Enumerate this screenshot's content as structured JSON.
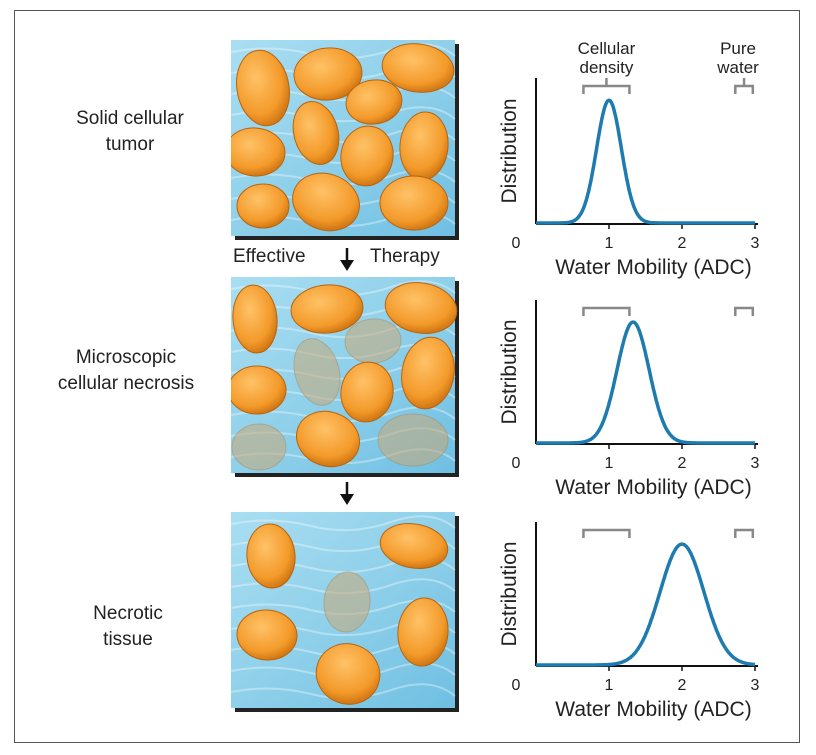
{
  "stages": [
    {
      "label_lines": [
        "Solid cellular",
        "tumor"
      ]
    },
    {
      "label_lines": [
        "Microscopic",
        "cellular necrosis"
      ]
    },
    {
      "label_lines": [
        "Necrotic",
        "tissue"
      ]
    }
  ],
  "transition": {
    "left_word": "Effective",
    "right_word": "Therapy"
  },
  "brackets": {
    "cellular_density": [
      "Cellular",
      "density"
    ],
    "pure_water": [
      "Pure",
      "water"
    ]
  },
  "colors": {
    "cell": "#f39a2a",
    "cell_dark": "#c96f0f",
    "dead_cell": "#c9a774",
    "water": "#8fd0ea",
    "curve": "#1e7bb0",
    "bracket": "#888888"
  },
  "chart_data": [
    {
      "type": "line",
      "xlabel": "Water Mobility (ADC)",
      "ylabel": "Distribution",
      "x_ticks": [
        "0",
        "1",
        "2",
        "3"
      ],
      "xlim": [
        0,
        3
      ],
      "peak_x": 1.0,
      "sigma": 0.17
    },
    {
      "type": "line",
      "xlabel": "Water Mobility (ADC)",
      "ylabel": "Distribution",
      "x_ticks": [
        "0",
        "1",
        "2",
        "3"
      ],
      "xlim": [
        0,
        3
      ],
      "peak_x": 1.33,
      "sigma": 0.22
    },
    {
      "type": "line",
      "xlabel": "Water Mobility (ADC)",
      "ylabel": "Distribution",
      "x_ticks": [
        "0",
        "1",
        "2",
        "3"
      ],
      "xlim": [
        0,
        3
      ],
      "peak_x": 2.0,
      "sigma": 0.3
    }
  ]
}
